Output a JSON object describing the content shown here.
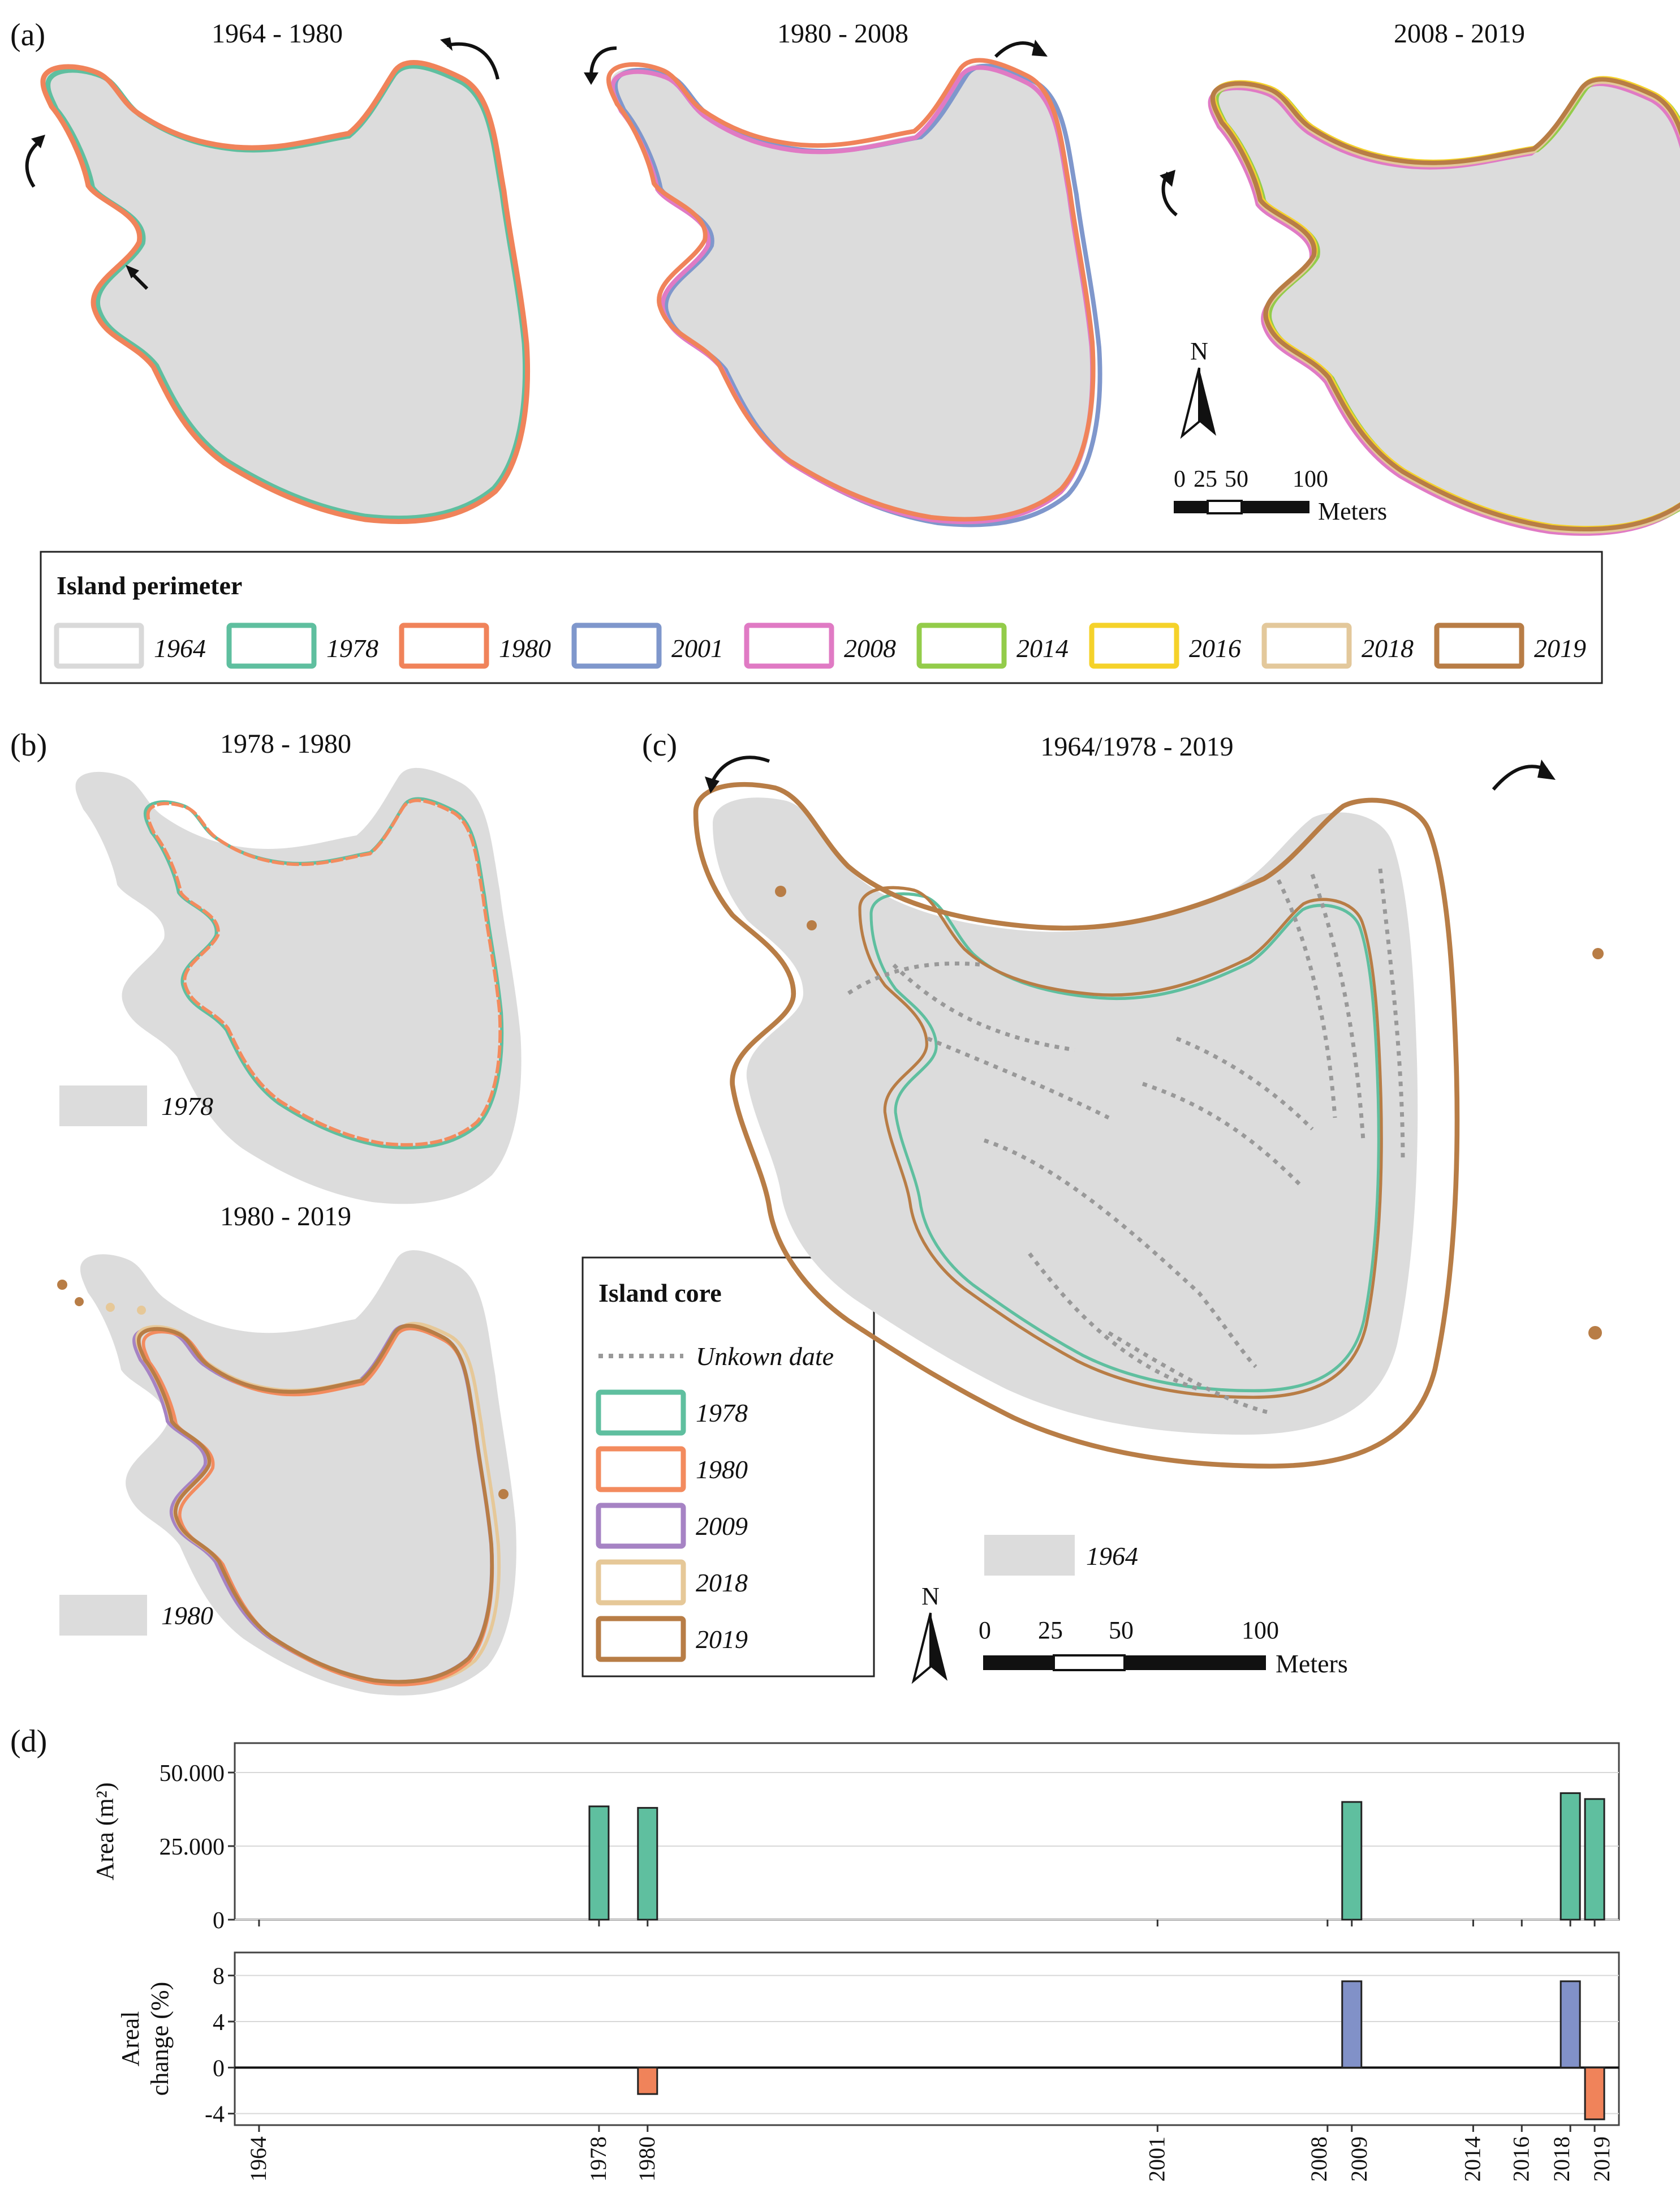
{
  "panel_labels": {
    "a": "(a)",
    "b": "(b)",
    "c": "(c)",
    "d": "(d)"
  },
  "panel_a": {
    "titles": [
      "1964 - 1980",
      "1980 - 2008",
      "2008 - 2019"
    ]
  },
  "panel_b": {
    "titles": [
      "1978 - 1980",
      "1980 - 2019"
    ],
    "base_labels": [
      "1978",
      "1980"
    ]
  },
  "panel_c": {
    "title": "1964/1978 - 2019",
    "base_label": "1964"
  },
  "north": {
    "label": "N"
  },
  "scale_bar_a": {
    "ticks": [
      "0",
      "25",
      "50",
      "100"
    ],
    "unit": "Meters"
  },
  "scale_bar_c": {
    "ticks": [
      "0",
      "25",
      "50",
      "100"
    ],
    "unit": "Meters"
  },
  "perimeter_legend": {
    "title": "Island perimeter",
    "items": [
      {
        "label": "1964",
        "color": "#d9d9d9"
      },
      {
        "label": "1978",
        "color": "#5fbf9f"
      },
      {
        "label": "1980",
        "color": "#f0835a"
      },
      {
        "label": "2001",
        "color": "#7f97cc"
      },
      {
        "label": "2008",
        "color": "#e07ac4"
      },
      {
        "label": "2014",
        "color": "#93cc4a"
      },
      {
        "label": "2016",
        "color": "#f5d22a"
      },
      {
        "label": "2018",
        "color": "#e3c89b"
      },
      {
        "label": "2019",
        "color": "#b87d46"
      }
    ]
  },
  "core_legend": {
    "title": "Island core",
    "items": [
      {
        "label": "Unkown date",
        "color": "#999999",
        "style": "dotted"
      },
      {
        "label": "1978",
        "color": "#5fbf9f"
      },
      {
        "label": "1980",
        "color": "#f38b5e"
      },
      {
        "label": "2009",
        "color": "#a683c4"
      },
      {
        "label": "2018",
        "color": "#e6c898"
      },
      {
        "label": "2019",
        "color": "#b87d46"
      }
    ]
  },
  "chart_data": [
    {
      "type": "bar",
      "ylabel": "Area (m2)",
      "ylim": [
        0,
        60000
      ],
      "yticks": [
        "0",
        "25.000",
        "50.000"
      ],
      "bar_color": "#5fbf9f",
      "series": [
        {
          "name": "Area",
          "x": [
            1978,
            1980,
            2009,
            2018,
            2019
          ],
          "values": [
            38500,
            38000,
            40000,
            43000,
            41000
          ]
        }
      ]
    },
    {
      "type": "bar",
      "ylabel": "Areal change (%)",
      "ylim": [
        -5,
        10
      ],
      "yticks": [
        "-4",
        "0",
        "4",
        "8"
      ],
      "colors": {
        "positive": "#8191c8",
        "negative": "#f0835a"
      },
      "series": [
        {
          "name": "Areal change",
          "x": [
            1980,
            2009,
            2018,
            2019
          ],
          "values": [
            -2.3,
            7.5,
            7.5,
            -4.5
          ]
        }
      ],
      "xticks": [
        "1964",
        "1978",
        "1980",
        "2001",
        "2008",
        "2009",
        "2014",
        "2016",
        "2018",
        "2019"
      ],
      "xlim": [
        1963,
        2020
      ]
    }
  ]
}
